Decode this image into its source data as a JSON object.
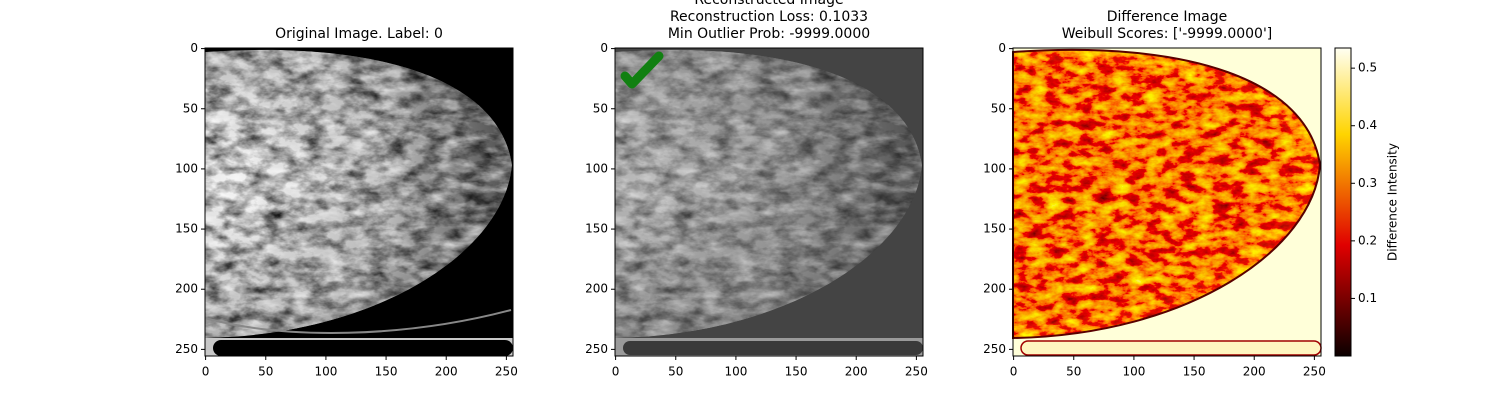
{
  "chart_data": [
    {
      "type": "image",
      "title": [
        "Original Image. Label: 0"
      ],
      "xlim": [
        -0.5,
        255.5
      ],
      "ylim": [
        255.5,
        -0.5
      ],
      "xticks": [
        0,
        50,
        100,
        150,
        200,
        250
      ],
      "yticks": [
        0,
        50,
        100,
        150,
        200,
        250
      ]
    },
    {
      "type": "image",
      "title": [
        "Reconstructed Image",
        "Reconstruction Loss: 0.1033",
        "Min Outlier Prob: -9999.0000"
      ],
      "xlim": [
        -0.5,
        255.5
      ],
      "ylim": [
        255.5,
        -0.5
      ],
      "xticks": [
        0,
        50,
        100,
        150,
        200,
        250
      ],
      "yticks": [
        0,
        50,
        100,
        150,
        200,
        250
      ]
    },
    {
      "type": "image",
      "title": [
        "Difference Image",
        "Weibull Scores: ['-9999.0000']"
      ],
      "xlim": [
        -0.5,
        255.5
      ],
      "ylim": [
        255.5,
        -0.5
      ],
      "xticks": [
        0,
        50,
        100,
        150,
        200,
        250
      ],
      "yticks": [
        0,
        50,
        100,
        150,
        200,
        250
      ],
      "colorbar": {
        "label": "Difference Intensity",
        "lim": [
          0,
          0.535
        ],
        "ticks": [
          0.1,
          0.2,
          0.3,
          0.4,
          0.5
        ]
      }
    }
  ]
}
